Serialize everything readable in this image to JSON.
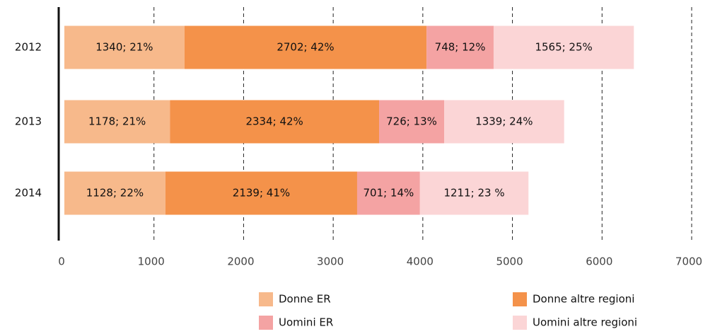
{
  "chart_data": {
    "type": "stacked_barh",
    "categories": [
      "2012",
      "2013",
      "2014"
    ],
    "series": [
      {
        "name": "Donne ER",
        "color": "#f7b98b",
        "values": [
          1340,
          1178,
          1128
        ],
        "value_labels": [
          "1340; 21%",
          "1178; 21%",
          "1128; 22%"
        ]
      },
      {
        "name": "Donne altre regioni",
        "color": "#f4924a",
        "values": [
          2702,
          2334,
          2139
        ],
        "value_labels": [
          "2702; 42%",
          "2334; 42%",
          "2139; 41%"
        ]
      },
      {
        "name": "Uomini ER",
        "color": "#f4a3a3",
        "values": [
          748,
          726,
          701
        ],
        "value_labels": [
          "748; 12%",
          "726; 13%",
          "701; 14%"
        ]
      },
      {
        "name": "Uomini altre regioni",
        "color": "#fbd5d6",
        "values": [
          1565,
          1339,
          1211
        ],
        "value_labels": [
          "1565; 25%",
          "1339; 24%",
          "1211; 23 %"
        ]
      }
    ],
    "xlim": [
      0,
      7000
    ],
    "xticks": [
      0,
      1000,
      2000,
      3000,
      4000,
      5000,
      6000,
      7000
    ],
    "grid": true
  }
}
